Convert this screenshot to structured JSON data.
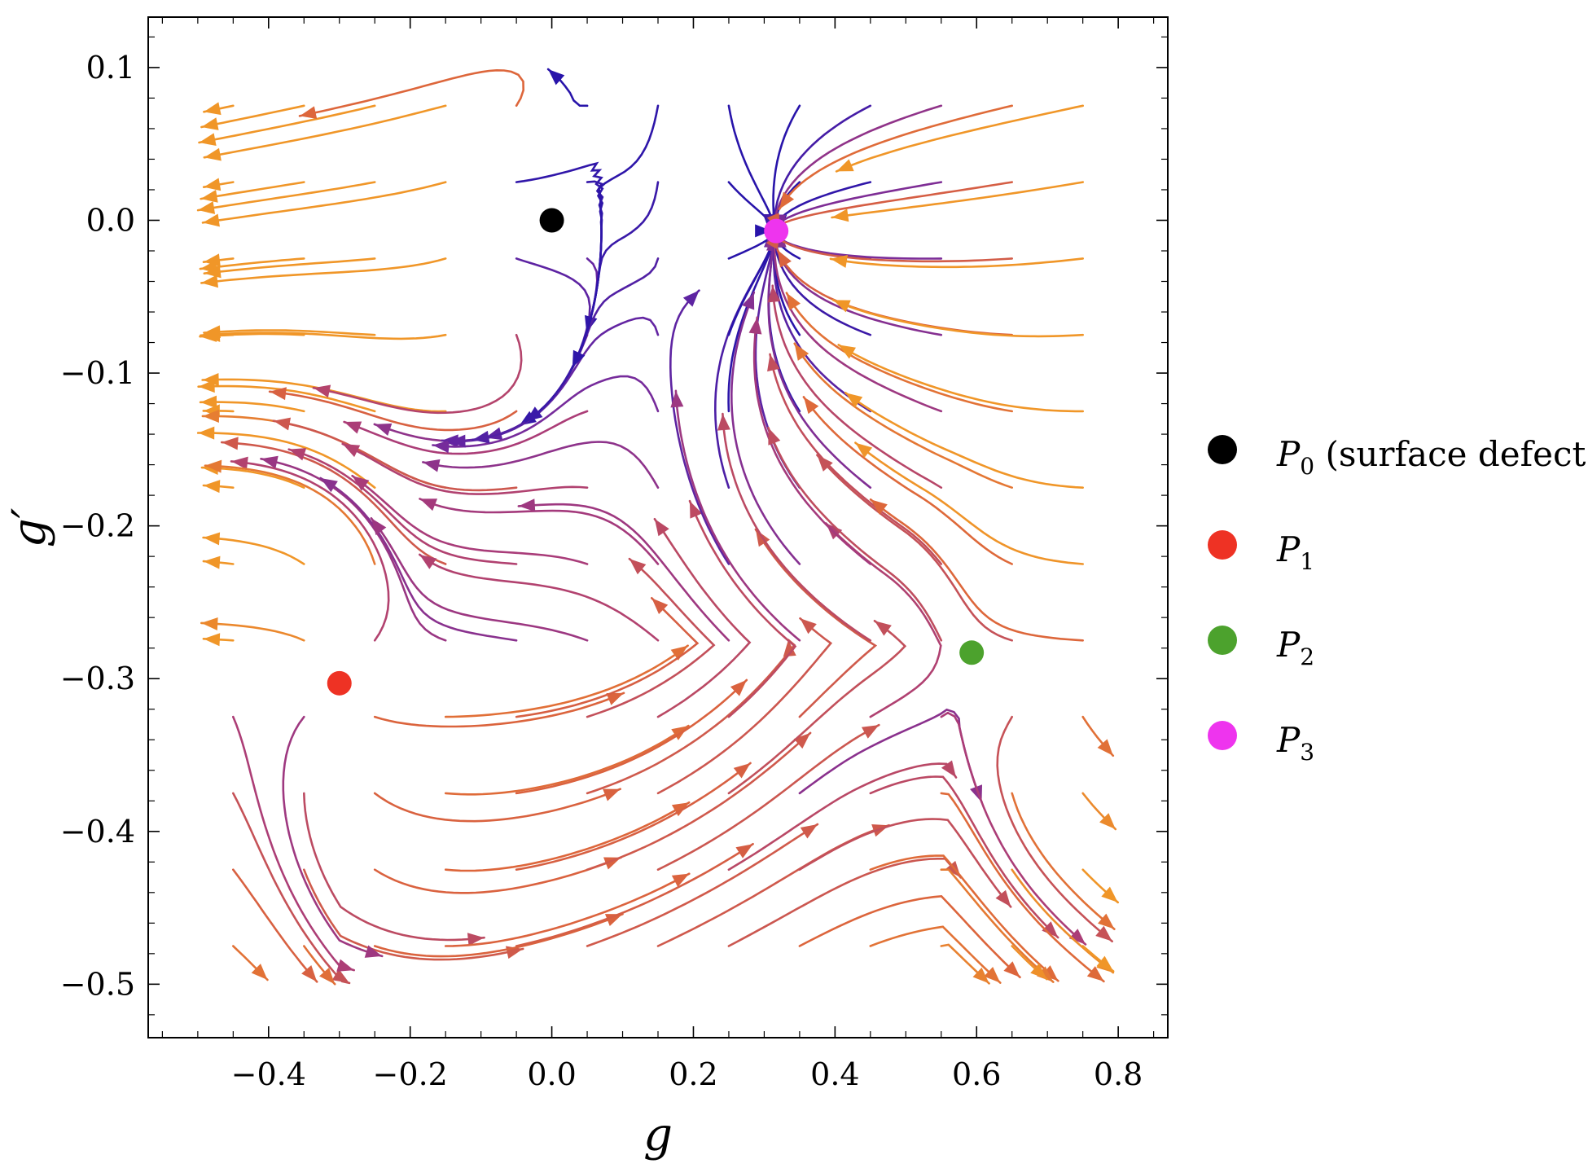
{
  "chart_data": {
    "type": "streamplot",
    "xlabel": "g",
    "ylabel": "g′",
    "xlim": [
      -0.57,
      0.87
    ],
    "ylim": [
      -0.535,
      0.133
    ],
    "x_ticks": [
      -0.4,
      -0.2,
      0.0,
      0.2,
      0.4,
      0.6,
      0.8
    ],
    "x_tick_labels": [
      "−0.4",
      "−0.2",
      "0.0",
      "0.2",
      "0.4",
      "0.6",
      "0.8"
    ],
    "y_ticks": [
      0.1,
      0.0,
      -0.1,
      -0.2,
      -0.3,
      -0.4,
      -0.5
    ],
    "y_tick_labels": [
      "0.1",
      "0.0",
      "−0.1",
      "−0.2",
      "−0.3",
      "−0.4",
      "−0.5"
    ],
    "stream_region": {
      "x": [
        -0.5,
        0.8
      ],
      "y": [
        -0.5,
        0.1
      ]
    },
    "grid": false,
    "legend_position": "right",
    "colormap": "speed: dark blue (slow) → purple → orange (fast)",
    "fixed_points": [
      {
        "name": "P0",
        "label_main": "P",
        "label_sub": "0",
        "label_extra": " (surface defect)",
        "x": 0.0,
        "y": 0.0,
        "color": "#000000"
      },
      {
        "name": "P1",
        "label_main": "P",
        "label_sub": "1",
        "label_extra": "",
        "x": -0.3,
        "y": -0.303,
        "color": "#ee3224"
      },
      {
        "name": "P2",
        "label_main": "P",
        "label_sub": "2",
        "label_extra": "",
        "x": 0.593,
        "y": -0.283,
        "color": "#4ca22d"
      },
      {
        "name": "P3",
        "label_main": "P",
        "label_sub": "3",
        "label_extra": "",
        "x": 0.317,
        "y": -0.007,
        "color": "#ee34ee"
      }
    ]
  }
}
